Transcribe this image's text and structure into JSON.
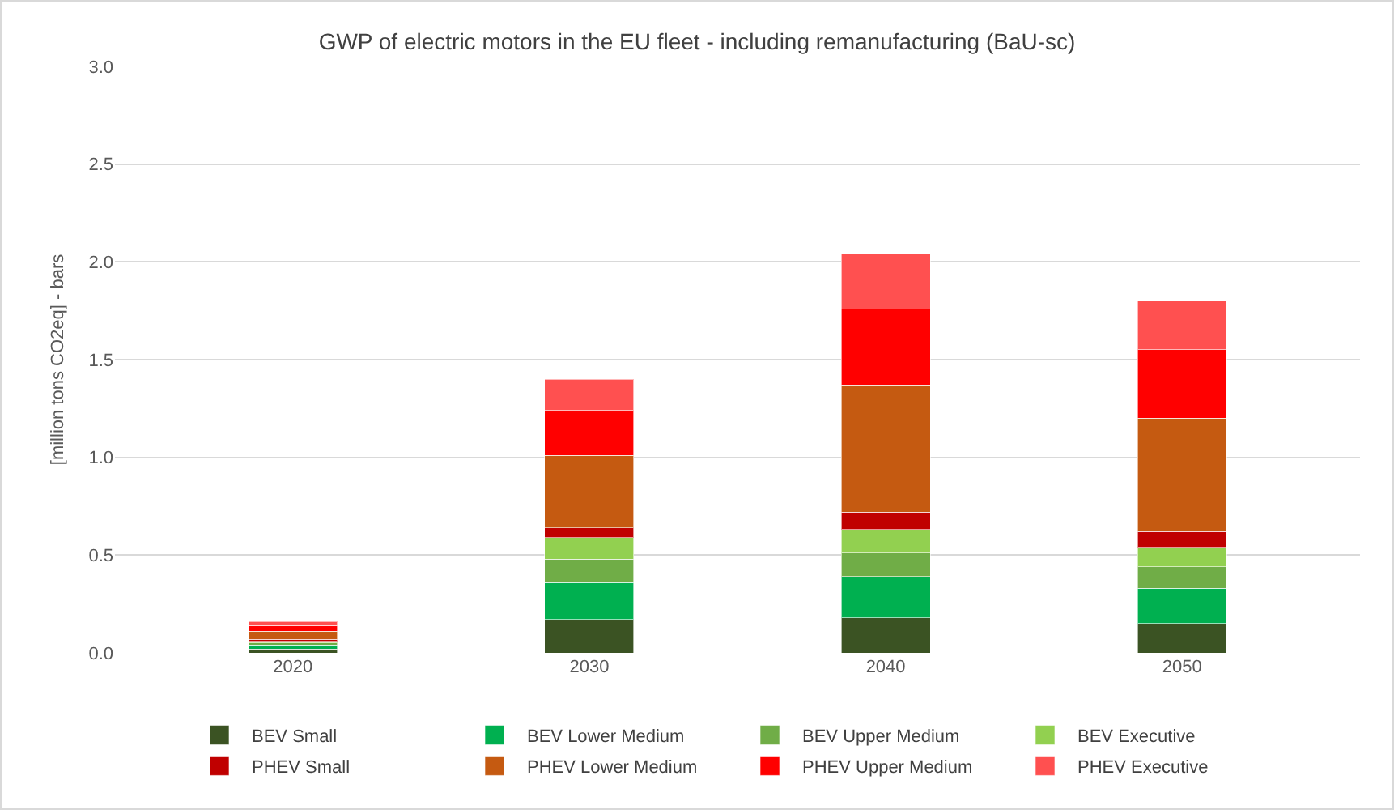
{
  "chart_data": {
    "type": "bar",
    "stacked": true,
    "title": "GWP of electric motors in the EU fleet - including remanufacturing (BaU-sc)",
    "ylabel": "[million tons CO2eq] - bars",
    "categories": [
      "2020",
      "2030",
      "2040",
      "2050"
    ],
    "series": [
      {
        "name": "BEV Small",
        "color": "#3b5323",
        "values": [
          0.02,
          0.17,
          0.18,
          0.15
        ]
      },
      {
        "name": "BEV Lower Medium",
        "color": "#00b050",
        "values": [
          0.02,
          0.19,
          0.21,
          0.18
        ]
      },
      {
        "name": "BEV Upper Medium",
        "color": "#70ad47",
        "values": [
          0.01,
          0.12,
          0.12,
          0.11
        ]
      },
      {
        "name": "BEV Executive",
        "color": "#92d050",
        "values": [
          0.01,
          0.11,
          0.12,
          0.1
        ]
      },
      {
        "name": "PHEV Small",
        "color": "#c00000",
        "values": [
          0.01,
          0.05,
          0.09,
          0.08
        ]
      },
      {
        "name": "PHEV Lower Medium",
        "color": "#c55a11",
        "values": [
          0.04,
          0.37,
          0.65,
          0.58
        ]
      },
      {
        "name": "PHEV Upper Medium",
        "color": "#ff0000",
        "values": [
          0.03,
          0.23,
          0.39,
          0.35
        ]
      },
      {
        "name": "PHEV Executive",
        "color": "#ff5050",
        "values": [
          0.02,
          0.16,
          0.28,
          0.25
        ]
      }
    ],
    "ylim": [
      0,
      3
    ],
    "yticks": [
      {
        "value": 0,
        "label": "0.0"
      },
      {
        "value": 0.5,
        "label": "0.5"
      },
      {
        "value": 1,
        "label": "1.0"
      },
      {
        "value": 1.5,
        "label": "1.5"
      },
      {
        "value": 2,
        "label": "2.0"
      },
      {
        "value": 2.5,
        "label": "2.5"
      },
      {
        "value": 3,
        "label": "3.0"
      }
    ],
    "grid": "y",
    "legend": "bottom"
  }
}
